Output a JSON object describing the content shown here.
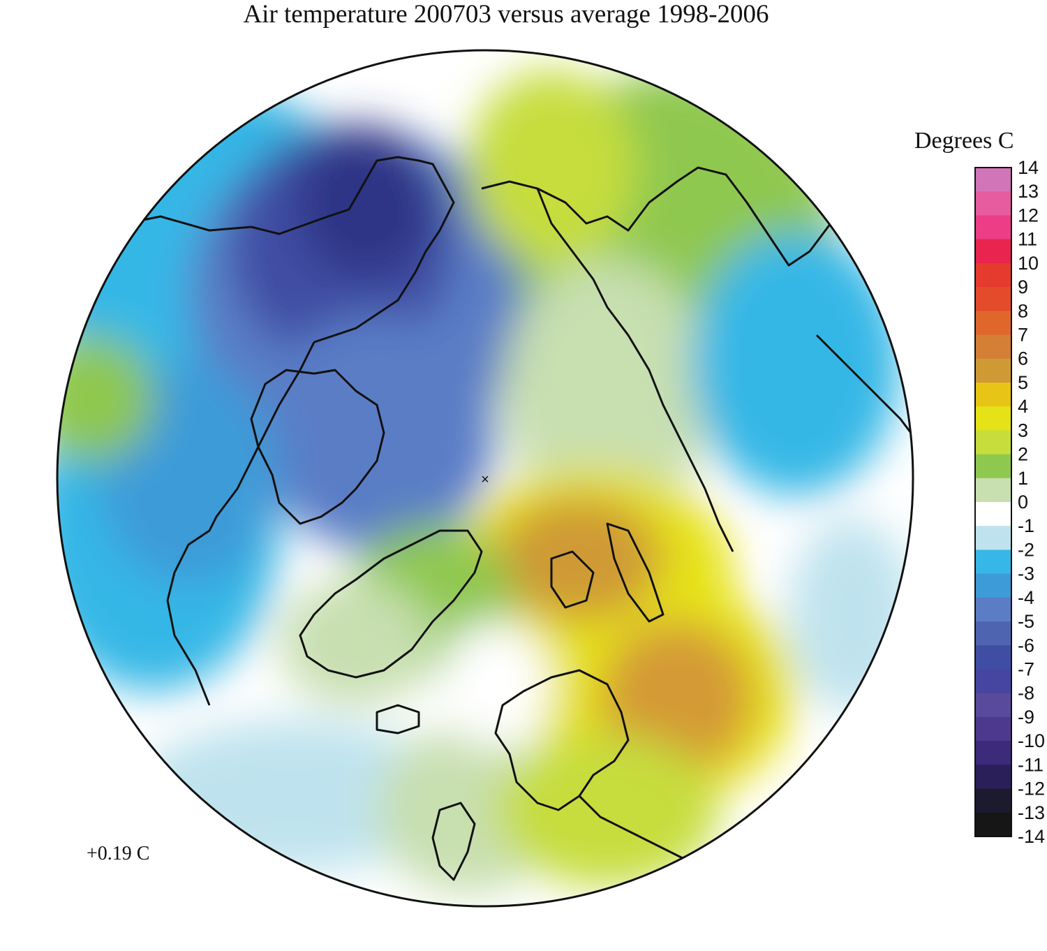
{
  "title": "Air temperature 200703 versus average 1998-2006",
  "legend": {
    "title": "Degrees C",
    "ticks": [
      "14",
      "13",
      "12",
      "11",
      "10",
      "9",
      "8",
      "7",
      "6",
      "5",
      "4",
      "3",
      "2",
      "1",
      "0",
      "-1",
      "-2",
      "-3",
      "-4",
      "-5",
      "-6",
      "-7",
      "-8",
      "-9",
      "-10",
      "-11",
      "-12",
      "-13",
      "-14"
    ],
    "colors": {
      "14": "#d175b8",
      "13": "#e65c9f",
      "12": "#ec3d86",
      "11": "#e8244f",
      "10": "#e53a2e",
      "9": "#e44b2a",
      "8": "#e0672c",
      "7": "#d47f35",
      "6": "#cf9a36",
      "5": "#e7c517",
      "4": "#e6e218",
      "3": "#c6dd3c",
      "2": "#8fc84f",
      "1": "#c8dfb0",
      "0": "#ffffff",
      "-1": "#bfe3ee",
      "-2": "#36b7e6",
      "-3": "#3d9bd8",
      "-4": "#5a7dc6",
      "-5": "#4f64b1",
      "-6": "#3f4ea3",
      "-7": "#4646a0",
      "-8": "#5a4a9c",
      "-9": "#4d3a8e",
      "-10": "#3b2b7a",
      "-11": "#2a1f58",
      "-12": "#1c1a2f",
      "-13": "#161616",
      "-14": "#0c0c0c"
    }
  },
  "mean_anomaly": "+0.19 C",
  "map": {
    "projection": "north-polar-stereographic",
    "pole_marker": "×"
  }
}
